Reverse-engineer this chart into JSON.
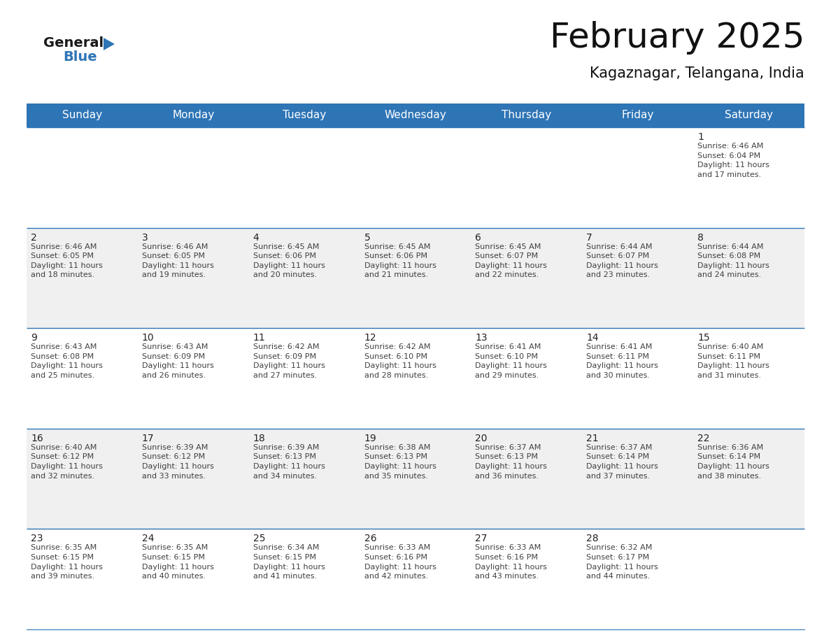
{
  "title": "February 2025",
  "subtitle": "Kagaznagar, Telangana, India",
  "header_color": "#2E75B6",
  "header_text_color": "#FFFFFF",
  "day_names": [
    "Sunday",
    "Monday",
    "Tuesday",
    "Wednesday",
    "Thursday",
    "Friday",
    "Saturday"
  ],
  "bg_color": "#FFFFFF",
  "cell_bg_even": "#FFFFFF",
  "cell_bg_odd": "#F0F0F0",
  "divider_color": "#2E75B6",
  "text_color": "#404040",
  "day_num_color": "#222222",
  "calendar": [
    [
      {
        "day": 0,
        "info": ""
      },
      {
        "day": 0,
        "info": ""
      },
      {
        "day": 0,
        "info": ""
      },
      {
        "day": 0,
        "info": ""
      },
      {
        "day": 0,
        "info": ""
      },
      {
        "day": 0,
        "info": ""
      },
      {
        "day": 1,
        "info": "Sunrise: 6:46 AM\nSunset: 6:04 PM\nDaylight: 11 hours\nand 17 minutes."
      }
    ],
    [
      {
        "day": 2,
        "info": "Sunrise: 6:46 AM\nSunset: 6:05 PM\nDaylight: 11 hours\nand 18 minutes."
      },
      {
        "day": 3,
        "info": "Sunrise: 6:46 AM\nSunset: 6:05 PM\nDaylight: 11 hours\nand 19 minutes."
      },
      {
        "day": 4,
        "info": "Sunrise: 6:45 AM\nSunset: 6:06 PM\nDaylight: 11 hours\nand 20 minutes."
      },
      {
        "day": 5,
        "info": "Sunrise: 6:45 AM\nSunset: 6:06 PM\nDaylight: 11 hours\nand 21 minutes."
      },
      {
        "day": 6,
        "info": "Sunrise: 6:45 AM\nSunset: 6:07 PM\nDaylight: 11 hours\nand 22 minutes."
      },
      {
        "day": 7,
        "info": "Sunrise: 6:44 AM\nSunset: 6:07 PM\nDaylight: 11 hours\nand 23 minutes."
      },
      {
        "day": 8,
        "info": "Sunrise: 6:44 AM\nSunset: 6:08 PM\nDaylight: 11 hours\nand 24 minutes."
      }
    ],
    [
      {
        "day": 9,
        "info": "Sunrise: 6:43 AM\nSunset: 6:08 PM\nDaylight: 11 hours\nand 25 minutes."
      },
      {
        "day": 10,
        "info": "Sunrise: 6:43 AM\nSunset: 6:09 PM\nDaylight: 11 hours\nand 26 minutes."
      },
      {
        "day": 11,
        "info": "Sunrise: 6:42 AM\nSunset: 6:09 PM\nDaylight: 11 hours\nand 27 minutes."
      },
      {
        "day": 12,
        "info": "Sunrise: 6:42 AM\nSunset: 6:10 PM\nDaylight: 11 hours\nand 28 minutes."
      },
      {
        "day": 13,
        "info": "Sunrise: 6:41 AM\nSunset: 6:10 PM\nDaylight: 11 hours\nand 29 minutes."
      },
      {
        "day": 14,
        "info": "Sunrise: 6:41 AM\nSunset: 6:11 PM\nDaylight: 11 hours\nand 30 minutes."
      },
      {
        "day": 15,
        "info": "Sunrise: 6:40 AM\nSunset: 6:11 PM\nDaylight: 11 hours\nand 31 minutes."
      }
    ],
    [
      {
        "day": 16,
        "info": "Sunrise: 6:40 AM\nSunset: 6:12 PM\nDaylight: 11 hours\nand 32 minutes."
      },
      {
        "day": 17,
        "info": "Sunrise: 6:39 AM\nSunset: 6:12 PM\nDaylight: 11 hours\nand 33 minutes."
      },
      {
        "day": 18,
        "info": "Sunrise: 6:39 AM\nSunset: 6:13 PM\nDaylight: 11 hours\nand 34 minutes."
      },
      {
        "day": 19,
        "info": "Sunrise: 6:38 AM\nSunset: 6:13 PM\nDaylight: 11 hours\nand 35 minutes."
      },
      {
        "day": 20,
        "info": "Sunrise: 6:37 AM\nSunset: 6:13 PM\nDaylight: 11 hours\nand 36 minutes."
      },
      {
        "day": 21,
        "info": "Sunrise: 6:37 AM\nSunset: 6:14 PM\nDaylight: 11 hours\nand 37 minutes."
      },
      {
        "day": 22,
        "info": "Sunrise: 6:36 AM\nSunset: 6:14 PM\nDaylight: 11 hours\nand 38 minutes."
      }
    ],
    [
      {
        "day": 23,
        "info": "Sunrise: 6:35 AM\nSunset: 6:15 PM\nDaylight: 11 hours\nand 39 minutes."
      },
      {
        "day": 24,
        "info": "Sunrise: 6:35 AM\nSunset: 6:15 PM\nDaylight: 11 hours\nand 40 minutes."
      },
      {
        "day": 25,
        "info": "Sunrise: 6:34 AM\nSunset: 6:15 PM\nDaylight: 11 hours\nand 41 minutes."
      },
      {
        "day": 26,
        "info": "Sunrise: 6:33 AM\nSunset: 6:16 PM\nDaylight: 11 hours\nand 42 minutes."
      },
      {
        "day": 27,
        "info": "Sunrise: 6:33 AM\nSunset: 6:16 PM\nDaylight: 11 hours\nand 43 minutes."
      },
      {
        "day": 28,
        "info": "Sunrise: 6:32 AM\nSunset: 6:17 PM\nDaylight: 11 hours\nand 44 minutes."
      },
      {
        "day": 0,
        "info": ""
      }
    ]
  ],
  "logo_general_color": "#1a1a1a",
  "logo_blue_color": "#2E75B6",
  "logo_triangle_color": "#2E75B6",
  "title_fontsize": 36,
  "subtitle_fontsize": 15,
  "header_fontsize": 11,
  "daynum_fontsize": 10,
  "info_fontsize": 8
}
